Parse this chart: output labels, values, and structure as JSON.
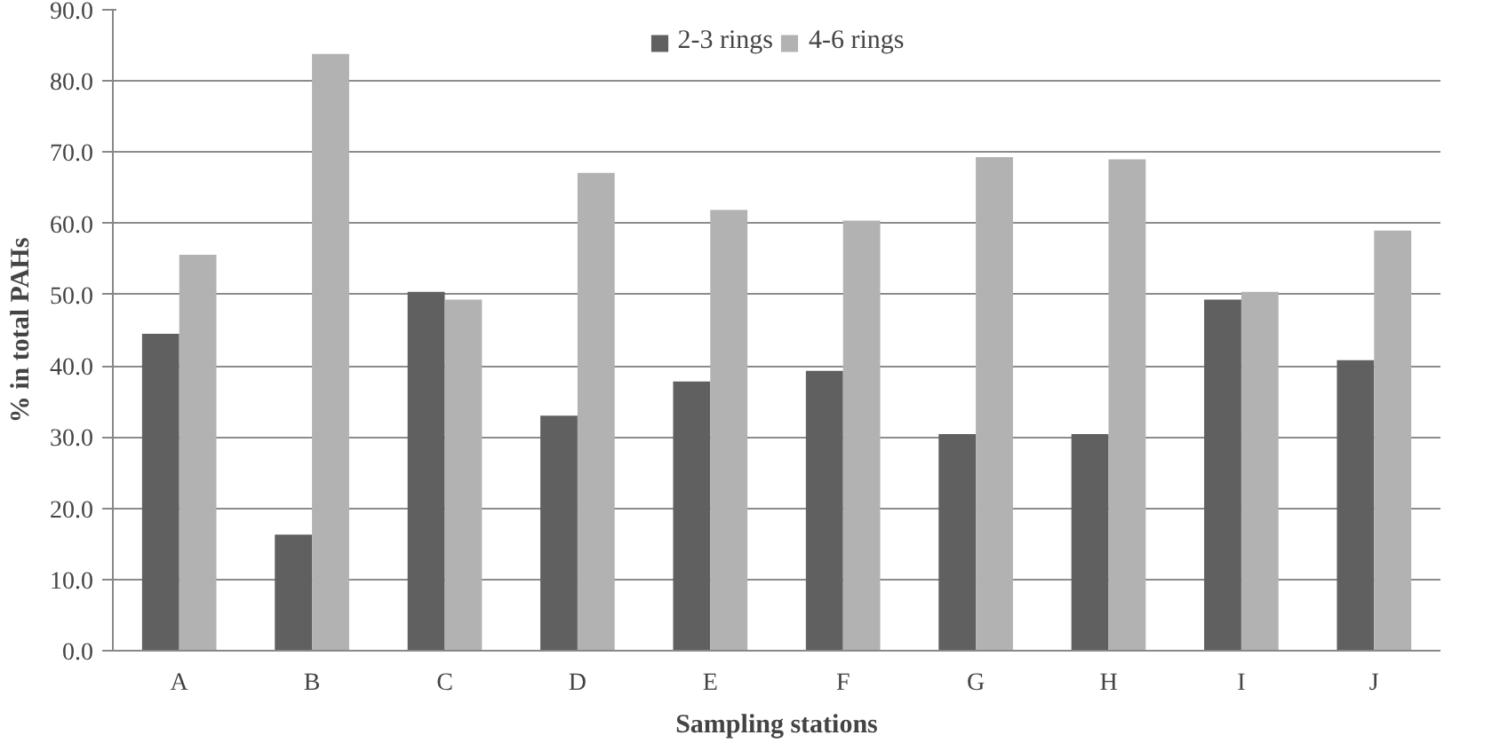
{
  "chart_data": {
    "type": "bar",
    "xlabel": "Sampling stations",
    "ylabel": "% in total PAHs",
    "categories": [
      "A",
      "B",
      "C",
      "D",
      "E",
      "F",
      "G",
      "H",
      "I",
      "J"
    ],
    "series": [
      {
        "name": "2-3 rings",
        "color": "#606060",
        "values": [
          44.5,
          16.3,
          50.4,
          33.0,
          37.8,
          39.3,
          30.4,
          30.4,
          49.3,
          40.8
        ]
      },
      {
        "name": "4-6 rings",
        "color": "#b2b2b2",
        "values": [
          55.6,
          83.8,
          49.3,
          67.1,
          61.9,
          60.4,
          69.3,
          69.0,
          50.4,
          59.0
        ]
      }
    ],
    "ylim": [
      0,
      90
    ],
    "yticks": [
      {
        "value": 0,
        "label": "0.0"
      },
      {
        "value": 10,
        "label": "10.0"
      },
      {
        "value": 20,
        "label": "20.0"
      },
      {
        "value": 30,
        "label": "30.0"
      },
      {
        "value": 40,
        "label": "40.0"
      },
      {
        "value": 50,
        "label": "50.0"
      },
      {
        "value": 60,
        "label": "60.0"
      },
      {
        "value": 70,
        "label": "70.0"
      },
      {
        "value": 80,
        "label": "80.0"
      },
      {
        "value": 90,
        "label": "90.0"
      }
    ],
    "grid": "y",
    "legend": "top"
  }
}
